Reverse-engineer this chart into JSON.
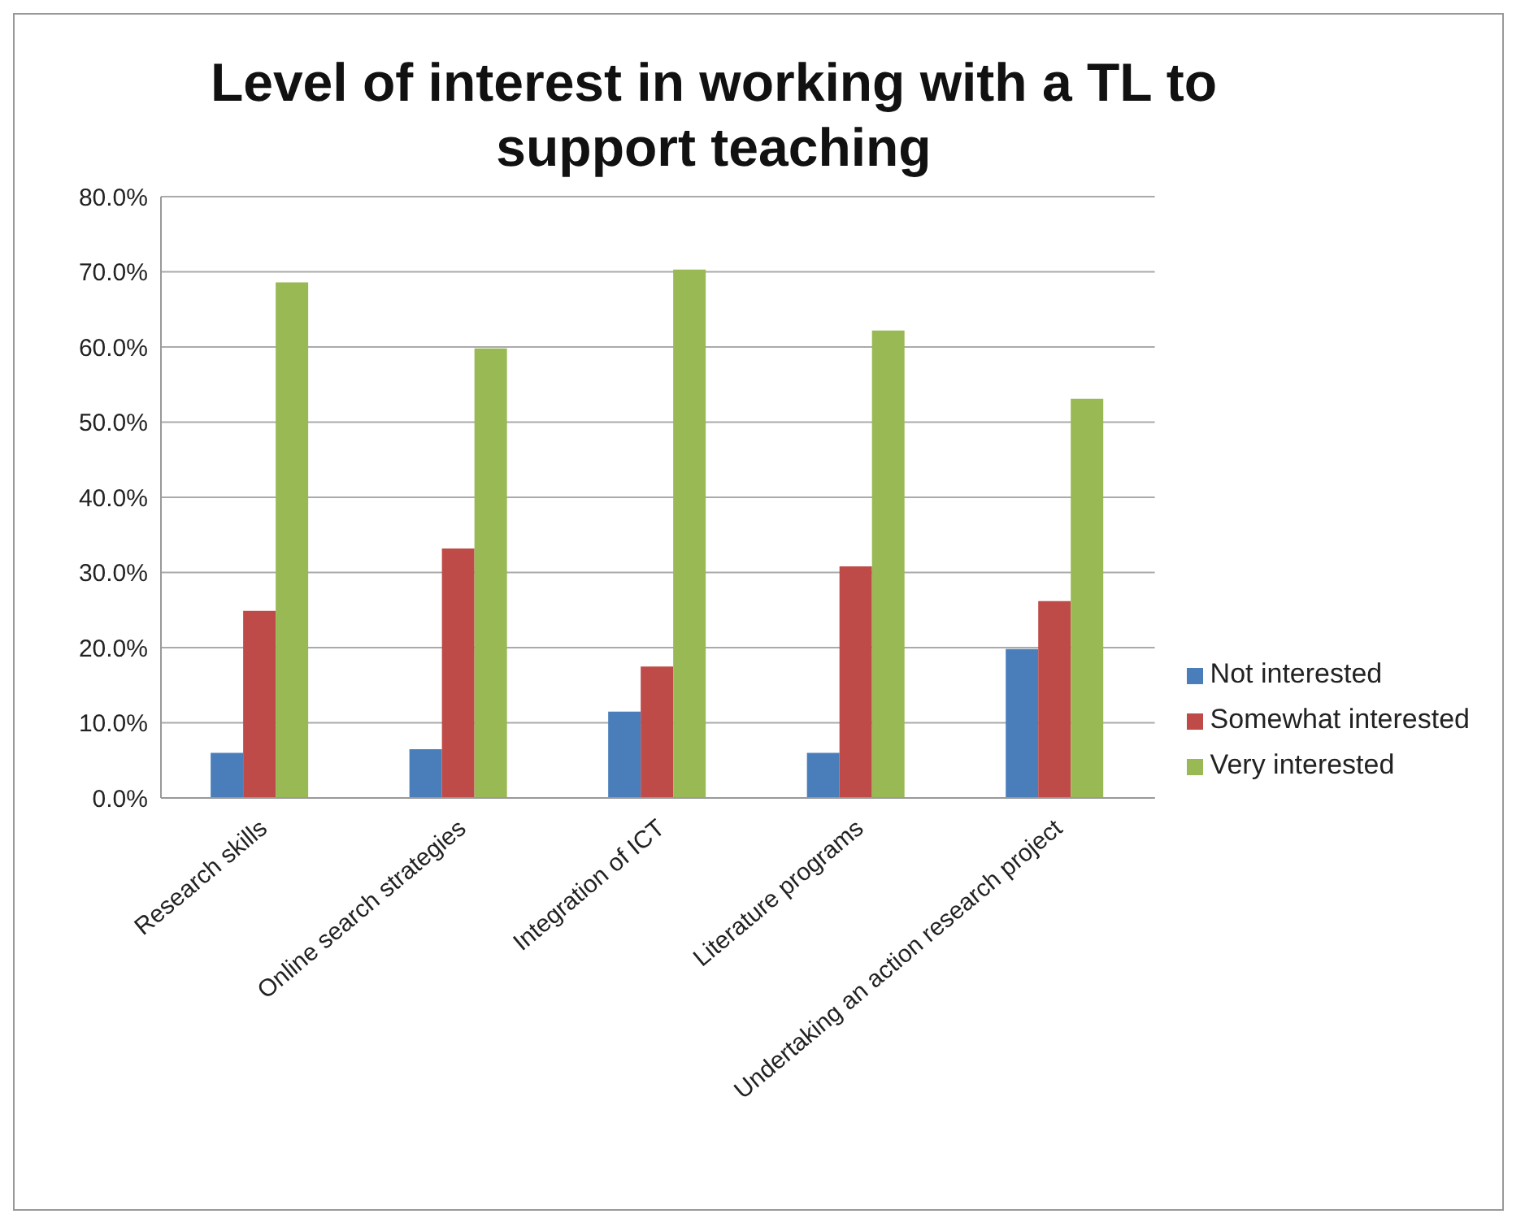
{
  "chart_data": {
    "type": "bar",
    "title": "Level of interest in working with a TL to support teaching",
    "categories": [
      "Research skills",
      "Online search strategies",
      "Integration of ICT",
      "Literature programs",
      "Undertaking an action research project"
    ],
    "series": [
      {
        "name": "Not interested",
        "color": "#4a7ebb",
        "values": [
          6.0,
          6.5,
          11.5,
          6.0,
          19.8
        ]
      },
      {
        "name": "Somewhat interested",
        "color": "#be4b48",
        "values": [
          24.9,
          33.2,
          17.5,
          30.8,
          26.2
        ]
      },
      {
        "name": "Very interested",
        "color": "#98b954",
        "values": [
          68.6,
          59.8,
          70.3,
          62.2,
          53.1
        ]
      }
    ],
    "ylim": [
      0,
      80
    ],
    "yticks": [
      {
        "value": 0,
        "label": "0.0%"
      },
      {
        "value": 10,
        "label": "10.0%"
      },
      {
        "value": 20,
        "label": "20.0%"
      },
      {
        "value": 30,
        "label": "30.0%"
      },
      {
        "value": 40,
        "label": "40.0%"
      },
      {
        "value": 50,
        "label": "50.0%"
      },
      {
        "value": 60,
        "label": "60.0%"
      },
      {
        "value": 70,
        "label": "70.0%"
      },
      {
        "value": 80,
        "label": "80.0%"
      }
    ],
    "grid": "y",
    "legend": "right"
  }
}
